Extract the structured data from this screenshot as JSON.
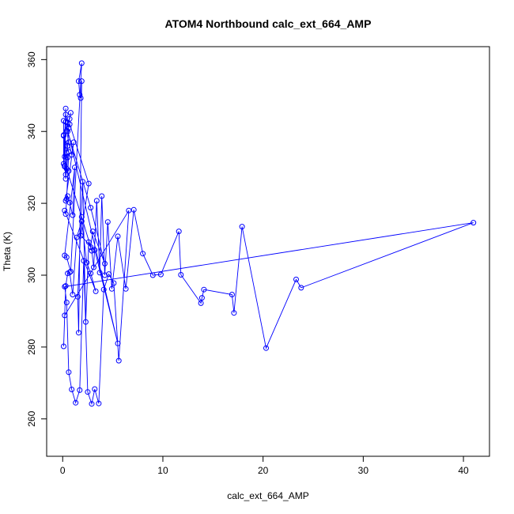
{
  "chart_data": {
    "type": "scatter",
    "title": "ATOM4 Northbound calc_ext_664_AMP",
    "xlabel": "calc_ext_664_AMP",
    "ylabel": "Theta (K)",
    "xlim": [
      -1.6,
      42.6
    ],
    "ylim": [
      249.6,
      363.6
    ],
    "xticks": [
      0,
      10,
      20,
      30,
      40
    ],
    "yticks": [
      260,
      280,
      300,
      320,
      340,
      360
    ],
    "grid": false,
    "legend": "none",
    "connected": true,
    "color": "#0000ff",
    "series": [
      {
        "x": [
          0.1,
          0.1,
          0.3,
          0.2,
          0.3,
          0.4,
          0.5,
          0.6,
          0.3,
          0.5,
          0.7,
          0.8,
          0.4,
          0.6,
          0.9,
          1.1,
          0.3,
          0.5,
          0.7,
          1.0,
          1.2,
          0.2,
          0.4,
          0.8,
          1.9,
          1.6,
          1.7,
          1.8,
          1.9,
          1.6,
          1.5,
          2.0,
          2.3,
          2.6,
          2.9,
          3.1,
          3.4,
          3.7,
          3.9,
          4.2,
          4.5,
          4.9,
          5.5,
          6.3,
          7.1,
          8.0,
          9.0,
          9.8,
          11.6,
          11.8,
          13.8,
          13.9,
          14.1,
          16.9,
          17.1,
          17.9,
          20.3,
          23.3,
          23.8,
          41.0,
          0.2,
          0.4,
          0.6,
          0.9,
          1.3,
          1.7,
          2.1,
          2.5,
          2.9,
          3.2,
          3.6,
          4.1,
          4.6,
          5.1,
          5.6,
          6.6,
          0.2,
          0.1,
          0.3,
          0.5,
          0.7,
          1.0,
          1.4,
          1.9,
          2.4,
          2.8,
          3.3,
          0.2,
          0.3,
          0.4,
          0.6,
          0.1,
          0.2,
          0.3,
          0.5,
          0.1,
          0.4,
          1.9,
          2.8,
          3.0,
          4.2,
          2.8,
          0.5,
          0.7,
          2.6,
          1.8,
          3.2,
          5.5,
          0.3,
          0.2,
          0.6
        ],
        "y": [
          343.0,
          331.0,
          346.4,
          330.2,
          328.0,
          334.0,
          336.0,
          341.0,
          344.7,
          342.5,
          343.5,
          345.2,
          340.2,
          337.0,
          333.5,
          337.0,
          320.7,
          322.0,
          320.2,
          316.7,
          330.0,
          305.5,
          305.0,
          301.0,
          359.0,
          354.0,
          350.2,
          349.3,
          354.0,
          284.0,
          294.0,
          326.0,
          287.0,
          309.2,
          306.8,
          302.2,
          320.7,
          300.7,
          322.0,
          300.0,
          314.8,
          296.2,
          310.8,
          296.2,
          318.2,
          306.0,
          300.0,
          300.2,
          312.2,
          300.1,
          292.2,
          293.7,
          296.0,
          294.6,
          289.5,
          313.5,
          279.7,
          298.8,
          296.5,
          314.6,
          296.8,
          292.4,
          273.0,
          268.2,
          264.5,
          268.0,
          304.0,
          267.5,
          264.2,
          268.3,
          264.3,
          296.0,
          300.3,
          297.8,
          276.2,
          318.0,
          288.8,
          280.2,
          297.0,
          300.5,
          300.8,
          294.6,
          310.5,
          315.0,
          303.5,
          300.5,
          295.5,
          318.0,
          317.0,
          321.2,
          334.3,
          339.0,
          333.0,
          326.8,
          332.8,
          338.8,
          329.6,
          316.2,
          307.8,
          312.2,
          303.2,
          318.8,
          340.0,
          342.0,
          325.5,
          311.0,
          307.0,
          281.0,
          342.7,
          330.5,
          329.0
        ]
      }
    ]
  }
}
